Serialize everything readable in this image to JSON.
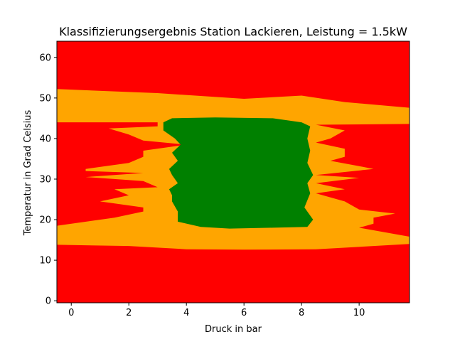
{
  "chart_data": {
    "type": "heatmap",
    "title": "Klassifizierungsergebnis Station Lackieren, Leistung = 1.5kW",
    "xlabel": "Druck in bar",
    "ylabel": "Temperatur in Grad Celsius",
    "xlim": [
      -0.5,
      11.75
    ],
    "ylim": [
      -0.5,
      64
    ],
    "x_ticks": [
      0,
      2,
      4,
      6,
      8,
      10
    ],
    "y_ticks": [
      0,
      10,
      20,
      30,
      40,
      50,
      60
    ],
    "grid": false,
    "colors": {
      "red": "#ff0000",
      "orange": "#ffa500",
      "green": "#008000"
    },
    "regions": [
      {
        "name": "orange",
        "polygon": [
          [
            -0.5,
            18.5
          ],
          [
            1.5,
            20.5
          ],
          [
            2.5,
            22
          ],
          [
            2.5,
            23
          ],
          [
            1,
            24.5
          ],
          [
            2,
            26
          ],
          [
            1.5,
            27.5
          ],
          [
            3,
            28
          ],
          [
            2.5,
            29.5
          ],
          [
            0.5,
            30.5
          ],
          [
            2.5,
            31.5
          ],
          [
            0.5,
            32
          ],
          [
            0.5,
            32.5
          ],
          [
            2,
            34
          ],
          [
            2.5,
            35.5
          ],
          [
            2.5,
            37
          ],
          [
            4,
            38.5
          ],
          [
            2.5,
            39.5
          ],
          [
            2,
            41
          ],
          [
            1.3,
            42.5
          ],
          [
            3,
            43
          ],
          [
            3,
            44
          ],
          [
            -0.5,
            44
          ],
          [
            -0.5,
            52.2
          ],
          [
            3,
            51.2
          ],
          [
            6,
            49.8
          ],
          [
            8,
            50.6
          ],
          [
            9.5,
            49
          ],
          [
            11.75,
            47.6
          ],
          [
            11.75,
            43.6
          ],
          [
            8.5,
            43.4
          ],
          [
            9.5,
            42
          ],
          [
            9,
            40
          ],
          [
            8.5,
            39
          ],
          [
            9.5,
            37.5
          ],
          [
            9.5,
            35.5
          ],
          [
            9,
            34.5
          ],
          [
            10,
            33.2
          ],
          [
            10.5,
            32.5
          ],
          [
            8.5,
            31
          ],
          [
            10,
            30.3
          ],
          [
            8.5,
            29
          ],
          [
            9.5,
            27.5
          ],
          [
            8.5,
            26.5
          ],
          [
            9.5,
            24.5
          ],
          [
            10,
            22.5
          ],
          [
            11.25,
            21.5
          ],
          [
            10.5,
            20.5
          ],
          [
            10.5,
            19
          ],
          [
            10,
            18
          ],
          [
            11.75,
            15.8
          ],
          [
            11.75,
            14
          ],
          [
            8.5,
            12.7
          ],
          [
            6,
            12.6
          ],
          [
            4,
            12.7
          ],
          [
            2,
            13.5
          ],
          [
            -0.5,
            13.8
          ]
        ]
      },
      {
        "name": "green",
        "polygon": [
          [
            3.2,
            44
          ],
          [
            3.5,
            45
          ],
          [
            5,
            45.2
          ],
          [
            7,
            45
          ],
          [
            8,
            44
          ],
          [
            8.3,
            43
          ],
          [
            8.2,
            40
          ],
          [
            8.3,
            37
          ],
          [
            8.2,
            34
          ],
          [
            8.4,
            31
          ],
          [
            8.2,
            29
          ],
          [
            8.3,
            26.5
          ],
          [
            8.1,
            23
          ],
          [
            8.4,
            20
          ],
          [
            8.2,
            18.2
          ],
          [
            7,
            18
          ],
          [
            5.5,
            17.8
          ],
          [
            4.5,
            18.2
          ],
          [
            3.7,
            19.5
          ],
          [
            3.7,
            22
          ],
          [
            3.5,
            24.5
          ],
          [
            3.5,
            26
          ],
          [
            3.4,
            27.5
          ],
          [
            3.7,
            29
          ],
          [
            3.5,
            31
          ],
          [
            3.4,
            32.5
          ],
          [
            3.7,
            34.5
          ],
          [
            3.5,
            36.5
          ],
          [
            3.8,
            38.5
          ],
          [
            3.6,
            40
          ],
          [
            3.2,
            42
          ]
        ]
      }
    ]
  }
}
